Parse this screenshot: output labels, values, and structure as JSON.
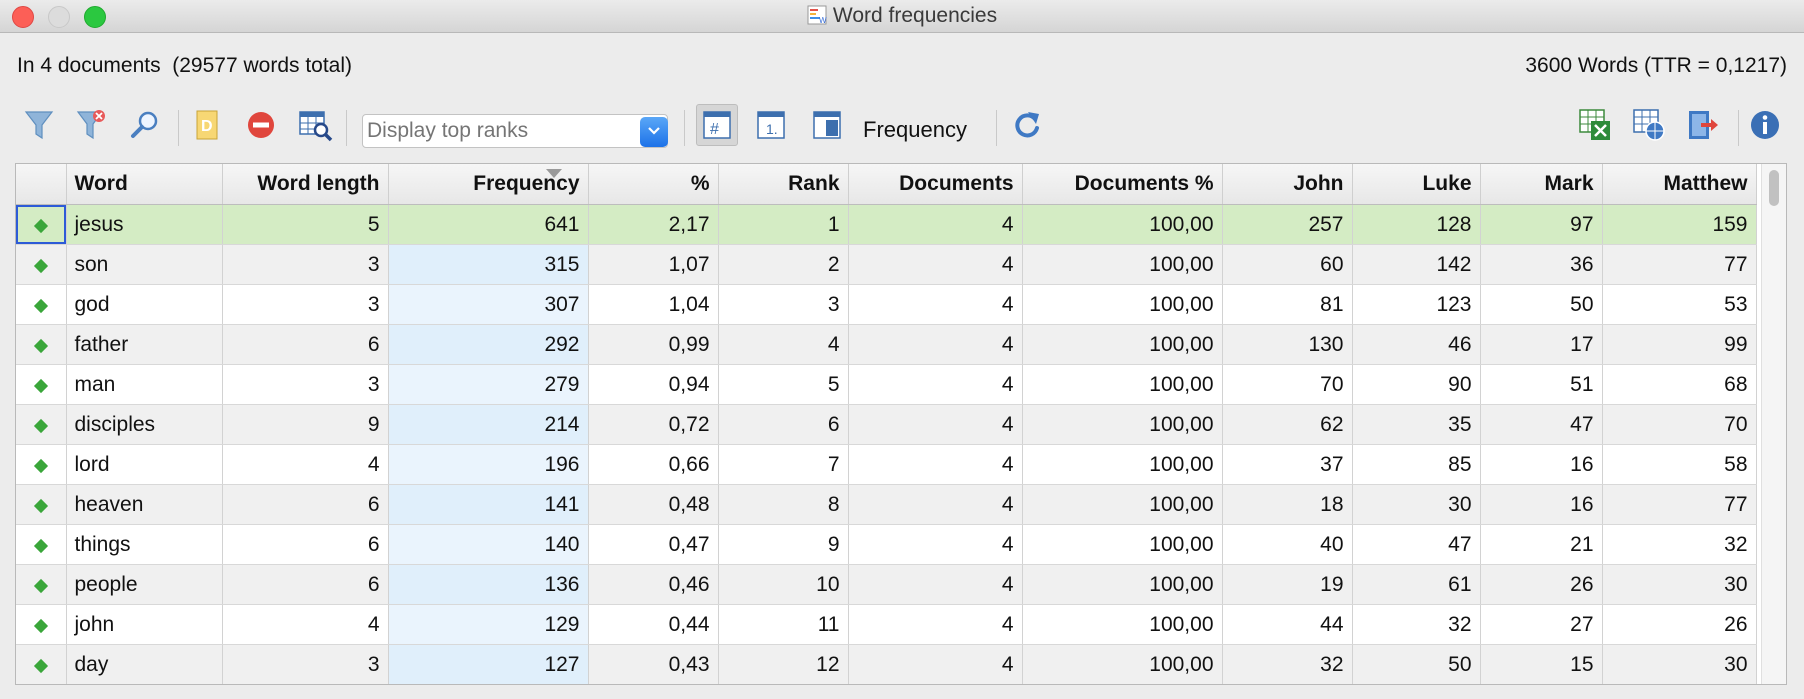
{
  "window": {
    "title": "Word frequencies"
  },
  "info": {
    "left": "In 4 documents  (29577 words total)",
    "right": "3600 Words (TTR = 0,1217)"
  },
  "toolbar": {
    "display_placeholder": "Display top ranks",
    "frequency_label": "Frequency",
    "icons": [
      "filter-icon",
      "clear-filter-icon",
      "search-icon",
      "dictionary-icon",
      "stop-word-icon",
      "table-search-icon",
      "number-column-icon",
      "rank-icon",
      "document-column-icon",
      "refresh-icon",
      "excel-export-icon",
      "web-export-icon",
      "export-icon",
      "info-icon"
    ]
  },
  "table": {
    "columns": [
      "",
      "Word",
      "Word length",
      "Frequency",
      "%",
      "Rank",
      "Documents",
      "Documents %",
      "John",
      "Luke",
      "Mark",
      "Matthew"
    ],
    "rows": [
      [
        "jesus",
        "5",
        "641",
        "2,17",
        "1",
        "4",
        "100,00",
        "257",
        "128",
        "97",
        "159"
      ],
      [
        "son",
        "3",
        "315",
        "1,07",
        "2",
        "4",
        "100,00",
        "60",
        "142",
        "36",
        "77"
      ],
      [
        "god",
        "3",
        "307",
        "1,04",
        "3",
        "4",
        "100,00",
        "81",
        "123",
        "50",
        "53"
      ],
      [
        "father",
        "6",
        "292",
        "0,99",
        "4",
        "4",
        "100,00",
        "130",
        "46",
        "17",
        "99"
      ],
      [
        "man",
        "3",
        "279",
        "0,94",
        "5",
        "4",
        "100,00",
        "70",
        "90",
        "51",
        "68"
      ],
      [
        "disciples",
        "9",
        "214",
        "0,72",
        "6",
        "4",
        "100,00",
        "62",
        "35",
        "47",
        "70"
      ],
      [
        "lord",
        "4",
        "196",
        "0,66",
        "7",
        "4",
        "100,00",
        "37",
        "85",
        "16",
        "58"
      ],
      [
        "heaven",
        "6",
        "141",
        "0,48",
        "8",
        "4",
        "100,00",
        "18",
        "30",
        "16",
        "77"
      ],
      [
        "things",
        "6",
        "140",
        "0,47",
        "9",
        "4",
        "100,00",
        "40",
        "47",
        "21",
        "32"
      ],
      [
        "people",
        "6",
        "136",
        "0,46",
        "10",
        "4",
        "100,00",
        "19",
        "61",
        "26",
        "30"
      ],
      [
        "john",
        "4",
        "129",
        "0,44",
        "11",
        "4",
        "100,00",
        "44",
        "32",
        "27",
        "26"
      ],
      [
        "day",
        "3",
        "127",
        "0,43",
        "12",
        "4",
        "100,00",
        "32",
        "50",
        "15",
        "30"
      ],
      [
        "",
        "",
        "",
        "",
        "",
        "",
        "",
        "",
        "",
        "",
        ""
      ]
    ],
    "selected_row": 0,
    "sorted_column": "Frequency"
  },
  "colors": {
    "selected_row": "#d4ecc4",
    "frequency_column": "#eaf4fd",
    "marker": "#3aa63a",
    "accent": "#1d72e8"
  }
}
